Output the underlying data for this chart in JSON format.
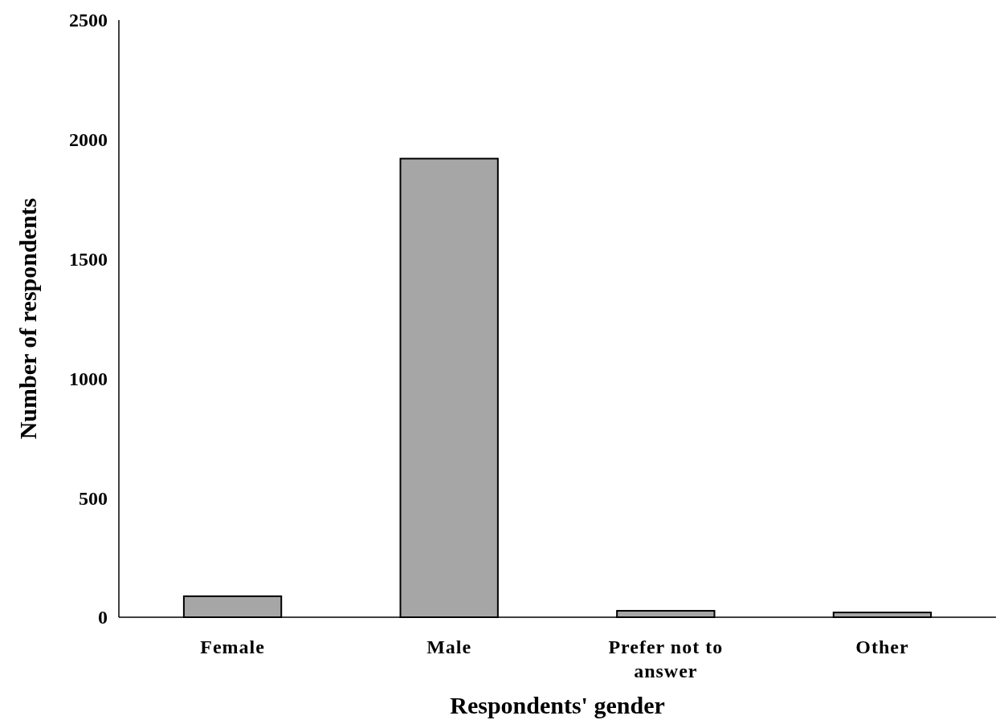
{
  "chart_data": {
    "type": "bar",
    "xlabel": "Respondents' gender",
    "ylabel": "Number of respondents",
    "categories": [
      "Female",
      "Male",
      "Prefer not to answer",
      "Other"
    ],
    "values": [
      88,
      1920,
      27,
      20
    ],
    "color": "#a6a6a6",
    "ylim": [
      0,
      2500
    ],
    "yticks": [
      0,
      500,
      1000,
      1500,
      2000,
      2500
    ],
    "grid": false
  }
}
